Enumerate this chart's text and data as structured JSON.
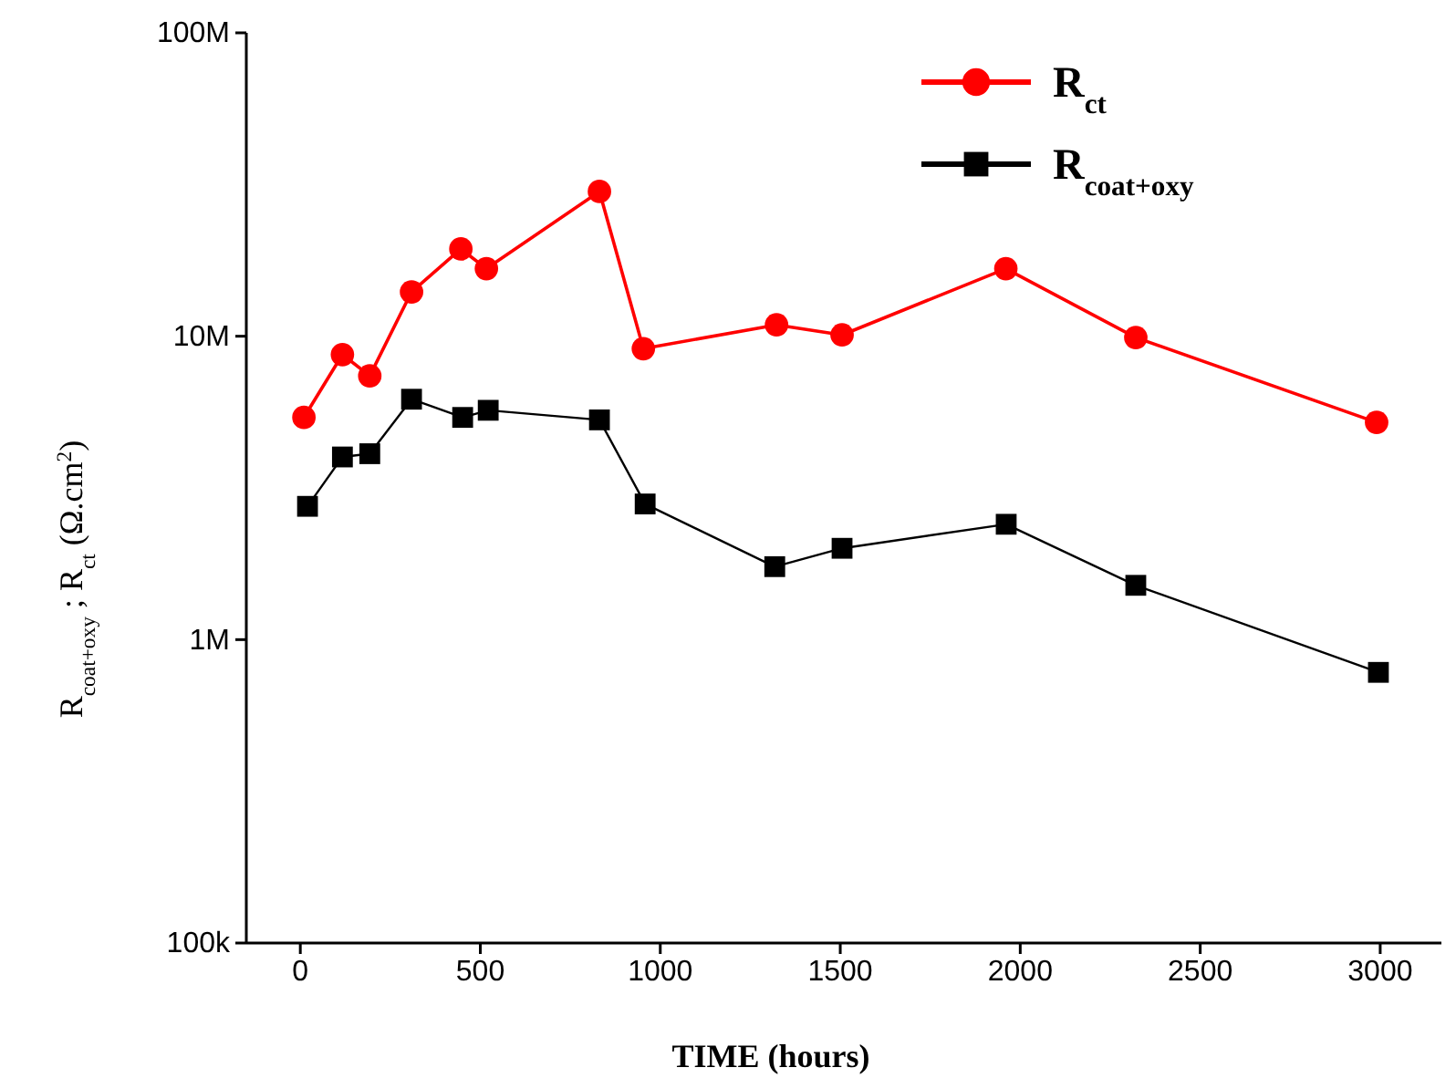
{
  "chart_data": {
    "type": "line",
    "xlabel": "TIME    (hours)",
    "ylabel": "R$_{coat+oxy}$ ; R$_{ct}$    (Ω.cm$^{2}$)",
    "log": "y",
    "legend": "top right",
    "line_style": "solid",
    "xlim": [
      -150,
      3170
    ],
    "xticks": [
      0,
      500,
      1000,
      1500,
      2000,
      2500,
      3000
    ],
    "ylim": [
      100000,
      100000000
    ],
    "yticks": [
      {
        "value": 100000,
        "label": "100k"
      },
      {
        "value": 1000000,
        "label": "1M"
      },
      {
        "value": 10000000,
        "label": "10M"
      },
      {
        "value": 100000000,
        "label": "100M"
      }
    ],
    "series": [
      {
        "name": "R$_{ct}$",
        "color": "#ff0000",
        "marker": "circle",
        "x": [
          10,
          117,
          193,
          309,
          446,
          517,
          831,
          953,
          1323,
          1505,
          1960,
          2321,
          2990
        ],
        "values": [
          5400000,
          8700000,
          7400000,
          14000000,
          19400000,
          16700000,
          30000000,
          9100000,
          10900000,
          10100000,
          16700000,
          9900000,
          5200000
        ]
      },
      {
        "name": "R$_{coat+oxy}$",
        "color": "#000000",
        "marker": "square",
        "x": [
          20,
          117,
          193,
          309,
          451,
          522,
          831,
          958,
          1318,
          1505,
          1961,
          2321,
          2995
        ],
        "values": [
          2750000,
          4000000,
          4100000,
          6200000,
          5400000,
          5700000,
          5300000,
          2800000,
          1740000,
          2000000,
          2400000,
          1510000,
          780000
        ]
      }
    ]
  }
}
